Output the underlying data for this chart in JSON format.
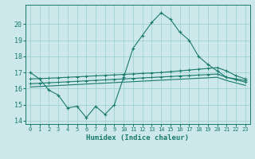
{
  "xlabel": "Humidex (Indice chaleur)",
  "x_values": [
    0,
    1,
    2,
    3,
    4,
    5,
    6,
    7,
    8,
    9,
    10,
    11,
    12,
    13,
    14,
    15,
    16,
    17,
    18,
    19,
    20,
    21,
    22,
    23
  ],
  "line1": [
    17.0,
    16.6,
    15.9,
    15.6,
    14.8,
    14.9,
    14.2,
    14.9,
    14.4,
    15.0,
    16.7,
    18.5,
    19.3,
    20.1,
    20.7,
    20.3,
    19.5,
    19.0,
    18.0,
    17.5,
    17.1,
    16.7,
    16.6,
    16.5
  ],
  "line2": [
    16.6,
    16.62,
    16.64,
    16.67,
    16.7,
    16.73,
    16.76,
    16.79,
    16.82,
    16.85,
    16.88,
    16.91,
    16.94,
    16.97,
    17.0,
    17.05,
    17.1,
    17.15,
    17.2,
    17.25,
    17.3,
    17.1,
    16.8,
    16.6
  ],
  "line3": [
    16.3,
    16.33,
    16.36,
    16.39,
    16.42,
    16.45,
    16.48,
    16.51,
    16.54,
    16.57,
    16.6,
    16.63,
    16.66,
    16.69,
    16.72,
    16.75,
    16.78,
    16.81,
    16.84,
    16.87,
    16.9,
    16.7,
    16.55,
    16.4
  ],
  "line4": [
    16.1,
    16.13,
    16.16,
    16.19,
    16.22,
    16.25,
    16.28,
    16.31,
    16.34,
    16.37,
    16.4,
    16.43,
    16.46,
    16.49,
    16.52,
    16.55,
    16.58,
    16.61,
    16.64,
    16.67,
    16.7,
    16.5,
    16.35,
    16.2
  ],
  "line_color": "#1a7a6e",
  "bg_color": "#cce8ea",
  "grid_color": "#9ccdd0",
  "ylim": [
    13.8,
    21.2
  ],
  "xlim": [
    -0.5,
    23.5
  ],
  "yticks": [
    14,
    15,
    16,
    17,
    18,
    19,
    20
  ],
  "xticks": [
    0,
    1,
    2,
    3,
    4,
    5,
    6,
    7,
    8,
    9,
    10,
    11,
    12,
    13,
    14,
    15,
    16,
    17,
    18,
    19,
    20,
    21,
    22,
    23
  ]
}
